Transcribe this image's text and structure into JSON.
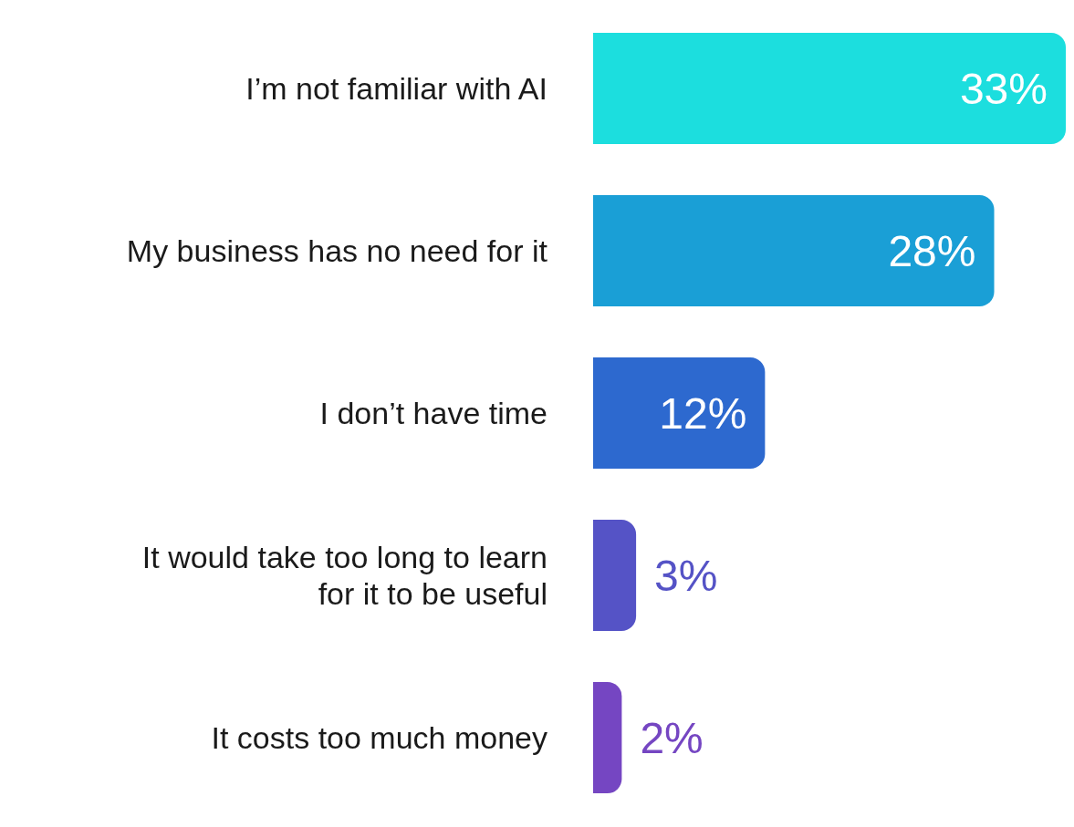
{
  "chart_data": {
    "type": "bar",
    "orientation": "horizontal",
    "categories": [
      "I’m not familiar with AI",
      "My business has no need for it",
      "I don’t have time",
      "It would take too long to learn for it to be useful",
      "It costs too much money"
    ],
    "values": [
      33,
      28,
      12,
      3,
      2
    ],
    "colors": [
      "#1cdede",
      "#1a9fd6",
      "#2d69cf",
      "#5553c6",
      "#7546c2"
    ],
    "value_labels": [
      "33%",
      "28%",
      "12%",
      "3%",
      "2%"
    ],
    "grid": false,
    "legend": false
  }
}
